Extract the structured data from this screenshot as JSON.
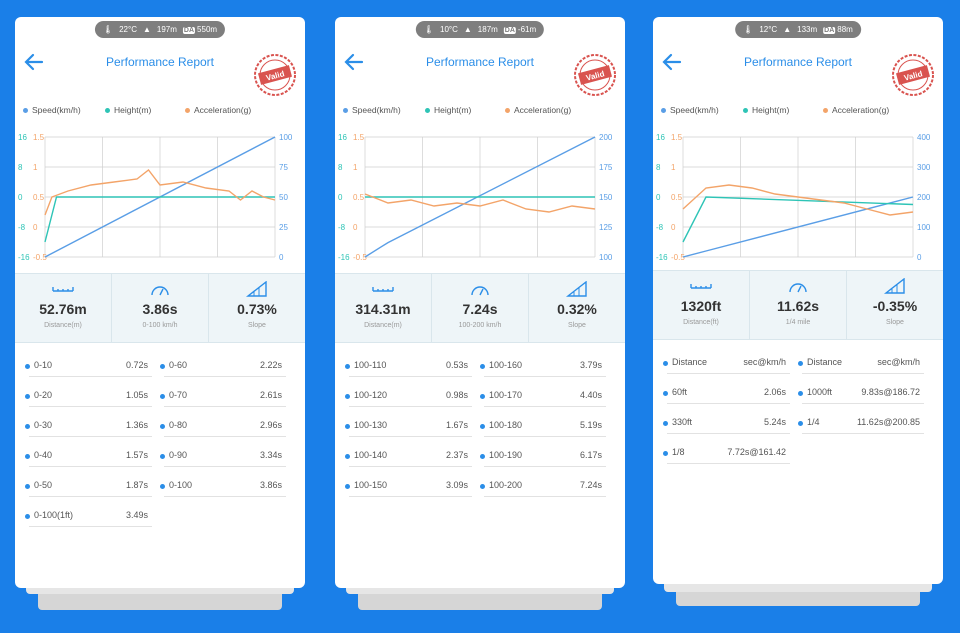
{
  "colors": {
    "speed": "#5a9ee6",
    "height": "#2ec4b6",
    "accel": "#f3a469",
    "bullet": "#2b8ee8"
  },
  "legend": {
    "speed": "Speed(km/h)",
    "height": "Height(m)",
    "accel": "Acceleration(g)"
  },
  "panels": [
    {
      "status": {
        "temp": "22°C",
        "alt": "197m",
        "da_label": "DA",
        "da": "550m"
      },
      "title": "Performance Report",
      "stamp": "Valid",
      "axes": {
        "left_outer": [
          "16",
          "8",
          "0",
          "-8",
          "-16"
        ],
        "left_inner": [
          "1.5",
          "1",
          "0.5",
          "0",
          "-0.5"
        ],
        "right": [
          "100",
          "75",
          "50",
          "25",
          "0"
        ]
      },
      "stats": [
        {
          "value": "52.76m",
          "label": "Distance(m)",
          "icon": "distance-icon"
        },
        {
          "value": "3.86s",
          "label": "0-100 km/h",
          "icon": "speedometer-icon"
        },
        {
          "value": "0.73%",
          "label": "Slope",
          "icon": "slope-icon"
        }
      ],
      "rows": [
        {
          "label": "0-10",
          "value": "0.72s"
        },
        {
          "label": "0-60",
          "value": "2.22s"
        },
        {
          "label": "0-20",
          "value": "1.05s"
        },
        {
          "label": "0-70",
          "value": "2.61s"
        },
        {
          "label": "0-30",
          "value": "1.36s"
        },
        {
          "label": "0-80",
          "value": "2.96s"
        },
        {
          "label": "0-40",
          "value": "1.57s"
        },
        {
          "label": "0-90",
          "value": "3.34s"
        },
        {
          "label": "0-50",
          "value": "1.87s"
        },
        {
          "label": "0-100",
          "value": "3.86s"
        },
        {
          "label": "0-100(1ft)",
          "value": "3.49s"
        }
      ]
    },
    {
      "status": {
        "temp": "10°C",
        "alt": "187m",
        "da_label": "DA",
        "da": "-61m"
      },
      "title": "Performance Report",
      "stamp": "Valid",
      "axes": {
        "left_outer": [
          "16",
          "8",
          "0",
          "-8",
          "-16"
        ],
        "left_inner": [
          "1.5",
          "1",
          "0.5",
          "0",
          "-0.5"
        ],
        "right": [
          "200",
          "175",
          "150",
          "125",
          "100"
        ]
      },
      "stats": [
        {
          "value": "314.31m",
          "label": "Distance(m)",
          "icon": "distance-icon"
        },
        {
          "value": "7.24s",
          "label": "100-200 km/h",
          "icon": "speedometer-icon"
        },
        {
          "value": "0.32%",
          "label": "Slope",
          "icon": "slope-icon"
        }
      ],
      "rows": [
        {
          "label": "100-110",
          "value": "0.53s"
        },
        {
          "label": "100-160",
          "value": "3.79s"
        },
        {
          "label": "100-120",
          "value": "0.98s"
        },
        {
          "label": "100-170",
          "value": "4.40s"
        },
        {
          "label": "100-130",
          "value": "1.67s"
        },
        {
          "label": "100-180",
          "value": "5.19s"
        },
        {
          "label": "100-140",
          "value": "2.37s"
        },
        {
          "label": "100-190",
          "value": "6.17s"
        },
        {
          "label": "100-150",
          "value": "3.09s"
        },
        {
          "label": "100-200",
          "value": "7.24s"
        }
      ]
    },
    {
      "status": {
        "temp": "12°C",
        "alt": "133m",
        "da_label": "DA",
        "da": "88m"
      },
      "title": "Performance Report",
      "stamp": "Valid",
      "axes": {
        "left_outer": [
          "16",
          "8",
          "0",
          "-8",
          "-16"
        ],
        "left_inner": [
          "1.5",
          "1",
          "0.5",
          "0",
          "-0.5"
        ],
        "right": [
          "400",
          "300",
          "200",
          "100",
          "0"
        ]
      },
      "stats": [
        {
          "value": "1320ft",
          "label": "Distance(ft)",
          "icon": "distance-icon"
        },
        {
          "value": "11.62s",
          "label": "1/4 mile",
          "icon": "speedometer-icon"
        },
        {
          "value": "-0.35%",
          "label": "Slope",
          "icon": "slope-icon"
        }
      ],
      "rows": [
        {
          "label": "Distance",
          "value": "sec@km/h"
        },
        {
          "label": "Distance",
          "value": "sec@km/h"
        },
        {
          "label": "60ft",
          "value": "2.06s"
        },
        {
          "label": "1000ft",
          "value": "9.83s@186.72"
        },
        {
          "label": "330ft",
          "value": "5.24s"
        },
        {
          "label": "1/4",
          "value": "11.62s@200.85"
        },
        {
          "label": "1/8",
          "value": "7.72s@161.42"
        }
      ]
    }
  ],
  "chart_data": [
    {
      "type": "line",
      "series": [
        {
          "name": "Speed(km/h)",
          "axis": "right",
          "x": [
            0,
            1
          ],
          "values": [
            0,
            100
          ]
        },
        {
          "name": "Height(m)",
          "axis": "left_outer",
          "x": [
            0,
            0.05,
            1
          ],
          "values": [
            -12,
            0,
            0
          ]
        },
        {
          "name": "Acceleration(g)",
          "axis": "left_inner",
          "x": [
            0,
            0.03,
            0.1,
            0.2,
            0.3,
            0.4,
            0.45,
            0.5,
            0.6,
            0.7,
            0.8,
            0.85,
            0.9,
            0.95,
            1
          ],
          "values": [
            0.2,
            0.5,
            0.6,
            0.7,
            0.75,
            0.8,
            0.95,
            0.7,
            0.75,
            0.65,
            0.6,
            0.45,
            0.6,
            0.5,
            0.45
          ]
        }
      ],
      "ylim_right": [
        0,
        100
      ],
      "ylim_left_outer": [
        -16,
        16
      ],
      "ylim_left_inner": [
        -0.5,
        1.5
      ]
    },
    {
      "type": "line",
      "series": [
        {
          "name": "Speed(km/h)",
          "axis": "right",
          "x": [
            0,
            0.1,
            1
          ],
          "values": [
            100,
            112,
            200
          ]
        },
        {
          "name": "Height(m)",
          "axis": "left_outer",
          "x": [
            0,
            1
          ],
          "values": [
            0,
            0
          ]
        },
        {
          "name": "Acceleration(g)",
          "axis": "left_inner",
          "x": [
            0,
            0.1,
            0.2,
            0.3,
            0.4,
            0.5,
            0.6,
            0.7,
            0.8,
            0.9,
            1
          ],
          "values": [
            0.55,
            0.4,
            0.45,
            0.35,
            0.4,
            0.35,
            0.45,
            0.3,
            0.25,
            0.35,
            0.3
          ]
        }
      ],
      "ylim_right": [
        100,
        200
      ],
      "ylim_left_outer": [
        -16,
        16
      ],
      "ylim_left_inner": [
        -0.5,
        1.5
      ]
    },
    {
      "type": "line",
      "series": [
        {
          "name": "Speed(km/h)",
          "axis": "right",
          "x": [
            0,
            0.1,
            1
          ],
          "values": [
            0,
            20,
            200
          ]
        },
        {
          "name": "Height(m)",
          "axis": "left_outer",
          "x": [
            0,
            0.1,
            1
          ],
          "values": [
            -12,
            0,
            -2
          ]
        },
        {
          "name": "Acceleration(g)",
          "axis": "left_inner",
          "x": [
            0,
            0.1,
            0.2,
            0.3,
            0.4,
            0.5,
            0.6,
            0.7,
            0.8,
            0.9,
            1
          ],
          "values": [
            0.3,
            0.65,
            0.7,
            0.65,
            0.55,
            0.5,
            0.45,
            0.4,
            0.3,
            0.2,
            0.25
          ]
        }
      ],
      "ylim_right": [
        0,
        400
      ],
      "ylim_left_outer": [
        -16,
        16
      ],
      "ylim_left_inner": [
        -0.5,
        1.5
      ]
    }
  ]
}
